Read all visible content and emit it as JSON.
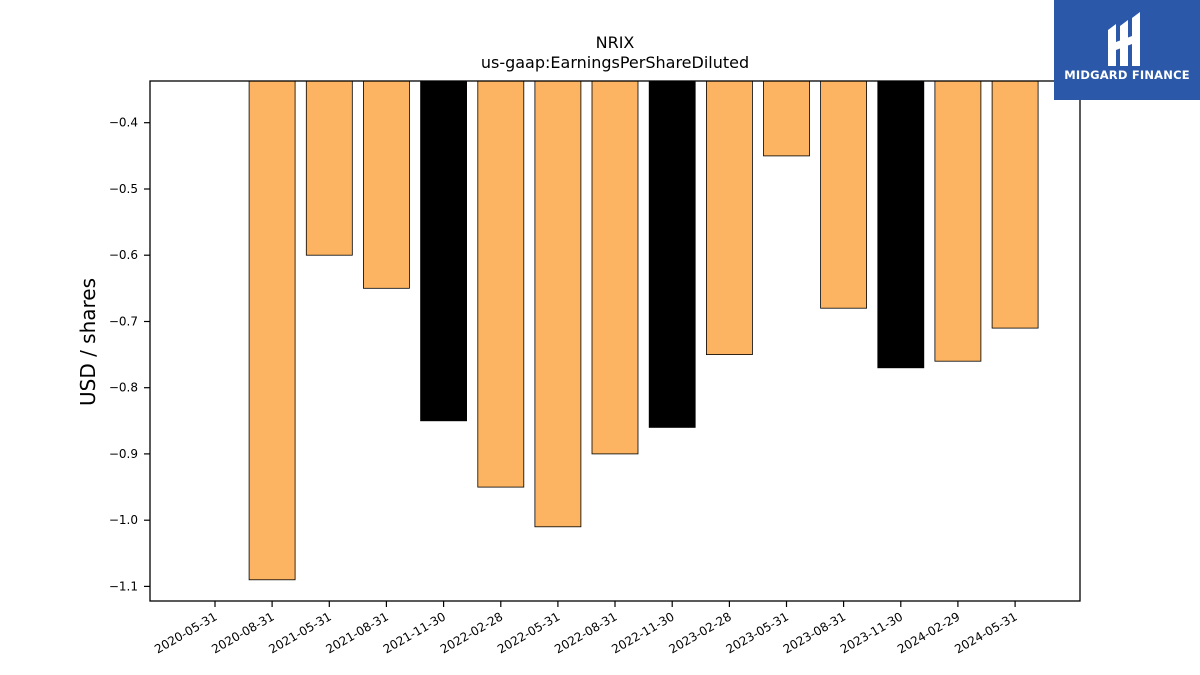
{
  "brand": {
    "name": "MIDGARD FINANCE",
    "bg_color": "#2b58a8"
  },
  "chart_data": {
    "type": "bar",
    "title": "NRIX",
    "subtitle": "us-gaap:EarningsPerShareDiluted",
    "xlabel": "",
    "ylabel": "USD / shares",
    "categories": [
      "2020-05-31",
      "2020-08-31",
      "2021-05-31",
      "2021-08-31",
      "2021-11-30",
      "2022-02-28",
      "2022-05-31",
      "2022-08-31",
      "2022-11-30",
      "2023-02-28",
      "2023-05-31",
      "2023-08-31",
      "2023-11-30",
      "2024-02-29",
      "2024-05-31"
    ],
    "values": [
      null,
      -1.09,
      -0.6,
      -0.65,
      -0.85,
      -0.95,
      -1.01,
      -0.9,
      -0.86,
      -0.75,
      -0.45,
      -0.68,
      -0.77,
      -0.76,
      -0.71
    ],
    "colors": [
      "#fdb462",
      "#fdb462",
      "#fdb462",
      "#fdb462",
      "#000000",
      "#fdb462",
      "#fdb462",
      "#fdb462",
      "#000000",
      "#fdb462",
      "#fdb462",
      "#fdb462",
      "#000000",
      "#fdb462",
      "#fdb462"
    ],
    "yticks": [
      "−0.4",
      "−0.5",
      "−0.6",
      "−0.7",
      "−0.8",
      "−0.9",
      "−1.0",
      "−1.1"
    ],
    "ytick_values": [
      -0.4,
      -0.5,
      -0.6,
      -0.7,
      -0.8,
      -0.9,
      -1.0,
      -1.1
    ],
    "ylim": [
      -1.122,
      -0.337
    ],
    "grid": false,
    "legend": "none"
  }
}
